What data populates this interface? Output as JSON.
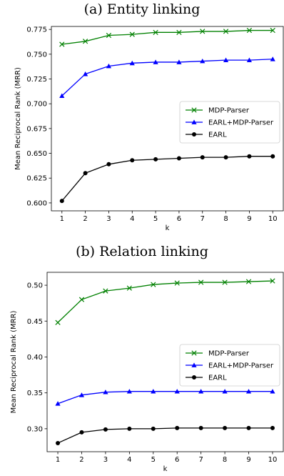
{
  "chart_data": [
    {
      "type": "line",
      "title": "(a) Entity linking",
      "xlabel": "k",
      "ylabel": "Mean Reciprocal Rank (MRR)",
      "x": [
        1,
        2,
        3,
        4,
        5,
        6,
        7,
        8,
        9,
        10
      ],
      "xticks": [
        "1",
        "2",
        "3",
        "4",
        "5",
        "6",
        "7",
        "8",
        "9",
        "10"
      ],
      "ylim": [
        0.592,
        0.778
      ],
      "yticks": [
        0.6,
        0.625,
        0.65,
        0.675,
        0.7,
        0.725,
        0.75,
        0.775
      ],
      "ytick_labels": [
        "0.600",
        "0.625",
        "0.650",
        "0.675",
        "0.700",
        "0.725",
        "0.750",
        "0.775"
      ],
      "grid": false,
      "legend_position": "center-right",
      "series": [
        {
          "name": "MDP-Parser",
          "color": "#008000",
          "marker": "x",
          "values": [
            0.76,
            0.763,
            0.769,
            0.77,
            0.772,
            0.772,
            0.773,
            0.773,
            0.774,
            0.774
          ]
        },
        {
          "name": "EARL+MDP-Parser",
          "color": "#0000ff",
          "marker": "triangle",
          "values": [
            0.708,
            0.73,
            0.738,
            0.741,
            0.742,
            0.742,
            0.743,
            0.744,
            0.744,
            0.745
          ]
        },
        {
          "name": "EARL",
          "color": "#000000",
          "marker": "circle",
          "values": [
            0.602,
            0.63,
            0.639,
            0.643,
            0.644,
            0.645,
            0.646,
            0.646,
            0.647,
            0.647
          ]
        }
      ]
    },
    {
      "type": "line",
      "title": "(b) Relation linking",
      "xlabel": "k",
      "ylabel": "Mean Reciprocal Rank (MRR)",
      "x": [
        1,
        2,
        3,
        4,
        5,
        6,
        7,
        8,
        9,
        10
      ],
      "xticks": [
        "1",
        "2",
        "3",
        "4",
        "5",
        "6",
        "7",
        "8",
        "9",
        "10"
      ],
      "ylim": [
        0.268,
        0.518
      ],
      "yticks": [
        0.3,
        0.35,
        0.4,
        0.45,
        0.5
      ],
      "ytick_labels": [
        "0.30",
        "0.35",
        "0.40",
        "0.45",
        "0.50"
      ],
      "grid": false,
      "legend_position": "center-right",
      "series": [
        {
          "name": "MDP-Parser",
          "color": "#008000",
          "marker": "x",
          "values": [
            0.448,
            0.48,
            0.492,
            0.496,
            0.501,
            0.503,
            0.504,
            0.504,
            0.505,
            0.506
          ]
        },
        {
          "name": "EARL+MDP-Parser",
          "color": "#0000ff",
          "marker": "triangle",
          "values": [
            0.335,
            0.347,
            0.351,
            0.352,
            0.352,
            0.352,
            0.352,
            0.352,
            0.352,
            0.352
          ]
        },
        {
          "name": "EARL",
          "color": "#000000",
          "marker": "circle",
          "values": [
            0.28,
            0.295,
            0.299,
            0.3,
            0.3,
            0.301,
            0.301,
            0.301,
            0.301,
            0.301
          ]
        }
      ]
    }
  ]
}
